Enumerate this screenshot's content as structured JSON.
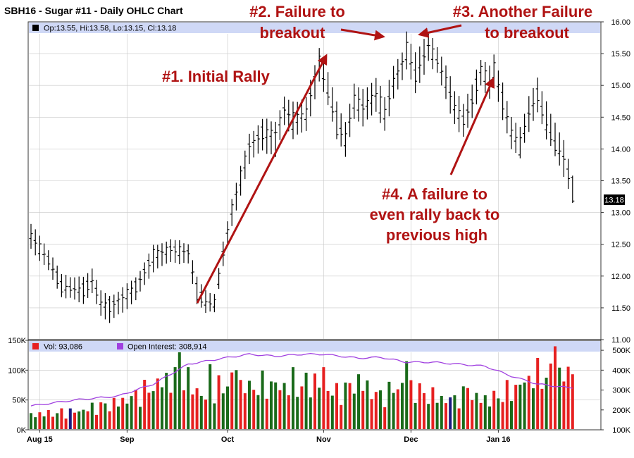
{
  "chart_data": {
    "type": "ohlc",
    "title": "SBH16 - Sugar #11 - Daily OHLC Chart",
    "ohlc_legend": "Op:13.55, Hi:13.58, Lo:13.15, Cl:13.18",
    "volume_legend": "Vol: 93,086",
    "open_interest_legend": "Open Interest: 308,914",
    "last_price_label": "13.18",
    "price_axis": {
      "ylim": [
        11.0,
        16.0
      ],
      "ticks": [
        "11.00",
        "11.50",
        "12.00",
        "12.50",
        "13.00",
        "13.50",
        "14.00",
        "14.50",
        "15.00",
        "15.50",
        "16.00"
      ]
    },
    "volume_axis": {
      "ylim": [
        0,
        150000
      ],
      "ticks": [
        "0K",
        "50K",
        "100K",
        "150K"
      ]
    },
    "oi_axis": {
      "ylim": [
        100000,
        550000
      ],
      "ticks": [
        "100K",
        "200K",
        "300K",
        "400K",
        "500K"
      ]
    },
    "x_labels": [
      {
        "label": "Aug 15",
        "index": 2
      },
      {
        "label": "Sep",
        "index": 22
      },
      {
        "label": "Oct",
        "index": 45
      },
      {
        "label": "Nov",
        "index": 67
      },
      {
        "label": "Dec",
        "index": 87
      },
      {
        "label": "Jan 16",
        "index": 107
      }
    ],
    "ohlc_anchors": [
      [
        0,
        12.55,
        12.8,
        12.45,
        12.7
      ],
      [
        4,
        12.3,
        12.4,
        12.1,
        12.2
      ],
      [
        7,
        11.85,
        12.0,
        11.7,
        11.8
      ],
      [
        12,
        11.8,
        11.95,
        11.6,
        11.75
      ],
      [
        14,
        11.95,
        12.1,
        11.75,
        11.9
      ],
      [
        16,
        11.6,
        11.75,
        11.4,
        11.55
      ],
      [
        18,
        11.55,
        11.65,
        11.3,
        11.5
      ],
      [
        21,
        11.65,
        11.8,
        11.45,
        11.7
      ],
      [
        24,
        11.85,
        11.95,
        11.65,
        11.8
      ],
      [
        28,
        12.3,
        12.45,
        12.1,
        12.35
      ],
      [
        32,
        12.4,
        12.55,
        12.25,
        12.45
      ],
      [
        36,
        12.4,
        12.5,
        12.2,
        12.35
      ],
      [
        38,
        11.8,
        11.95,
        11.6,
        11.7
      ],
      [
        40,
        11.6,
        11.75,
        11.45,
        11.55
      ],
      [
        42,
        11.55,
        11.7,
        11.45,
        11.6
      ],
      [
        44,
        12.3,
        12.5,
        12.2,
        12.4
      ],
      [
        46,
        13.0,
        13.2,
        12.8,
        13.1
      ],
      [
        48,
        13.5,
        13.7,
        13.3,
        13.6
      ],
      [
        50,
        14.0,
        14.2,
        13.8,
        14.1
      ],
      [
        53,
        14.3,
        14.45,
        14.0,
        14.2
      ],
      [
        56,
        14.2,
        14.4,
        13.9,
        14.3
      ],
      [
        58,
        14.6,
        14.8,
        14.4,
        14.65
      ],
      [
        60,
        14.4,
        14.7,
        14.2,
        14.5
      ],
      [
        63,
        14.5,
        14.8,
        14.3,
        14.6
      ],
      [
        65,
        15.1,
        15.3,
        14.8,
        15.2
      ],
      [
        66,
        15.3,
        15.55,
        15.1,
        15.4
      ],
      [
        68,
        14.9,
        15.2,
        14.7,
        14.8
      ],
      [
        70,
        14.5,
        14.7,
        14.2,
        14.3
      ],
      [
        72,
        14.1,
        14.4,
        13.9,
        14.2
      ],
      [
        74,
        14.7,
        15.0,
        14.5,
        14.8
      ],
      [
        76,
        14.6,
        14.9,
        14.4,
        14.7
      ],
      [
        79,
        14.8,
        15.1,
        14.6,
        14.9
      ],
      [
        81,
        14.5,
        14.8,
        14.3,
        14.6
      ],
      [
        83,
        15.0,
        15.3,
        14.8,
        15.1
      ],
      [
        85,
        15.3,
        15.5,
        15.1,
        15.4
      ],
      [
        86,
        15.5,
        15.8,
        15.3,
        15.6
      ],
      [
        88,
        15.2,
        15.5,
        14.9,
        15.1
      ],
      [
        90,
        15.4,
        15.7,
        15.2,
        15.5
      ],
      [
        91,
        15.6,
        15.8,
        15.4,
        15.65
      ],
      [
        93,
        15.4,
        15.6,
        15.2,
        15.35
      ],
      [
        95,
        15.0,
        15.3,
        14.8,
        15.1
      ],
      [
        97,
        14.6,
        14.9,
        14.4,
        14.7
      ],
      [
        99,
        14.5,
        14.7,
        14.2,
        14.4
      ],
      [
        101,
        14.8,
        15.0,
        14.5,
        14.7
      ],
      [
        103,
        15.2,
        15.4,
        15.0,
        15.3
      ],
      [
        105,
        15.0,
        15.3,
        14.8,
        15.1
      ],
      [
        106,
        15.2,
        15.45,
        15.0,
        15.3
      ],
      [
        108,
        14.8,
        15.0,
        14.5,
        14.7
      ],
      [
        110,
        14.2,
        14.5,
        14.0,
        14.3
      ],
      [
        112,
        14.0,
        14.3,
        13.9,
        14.1
      ],
      [
        114,
        14.5,
        14.8,
        14.3,
        14.6
      ],
      [
        116,
        14.9,
        15.1,
        14.6,
        14.8
      ],
      [
        118,
        14.4,
        14.7,
        14.2,
        14.3
      ],
      [
        120,
        14.1,
        14.4,
        13.9,
        14.0
      ],
      [
        122,
        13.8,
        14.1,
        13.6,
        13.9
      ],
      [
        124,
        13.55,
        13.58,
        13.15,
        13.18
      ]
    ],
    "volume_anchors": [
      [
        0,
        25000
      ],
      [
        10,
        30000
      ],
      [
        20,
        45000
      ],
      [
        25,
        60000
      ],
      [
        30,
        80000
      ],
      [
        35,
        90000
      ],
      [
        40,
        50000
      ],
      [
        45,
        80000
      ],
      [
        50,
        70000
      ],
      [
        55,
        75000
      ],
      [
        60,
        70000
      ],
      [
        65,
        80000
      ],
      [
        70,
        60000
      ],
      [
        75,
        80000
      ],
      [
        80,
        55000
      ],
      [
        85,
        75000
      ],
      [
        90,
        60000
      ],
      [
        95,
        50000
      ],
      [
        100,
        55000
      ],
      [
        105,
        50000
      ],
      [
        110,
        65000
      ],
      [
        115,
        90000
      ],
      [
        120,
        90000
      ],
      [
        124,
        93086
      ]
    ],
    "volume_spikes": [
      [
        34,
        130000
      ],
      [
        36,
        105000
      ],
      [
        41,
        110000
      ],
      [
        47,
        100000
      ],
      [
        60,
        105000
      ],
      [
        67,
        105000
      ],
      [
        86,
        115000
      ],
      [
        100,
        70000
      ],
      [
        120,
        140000
      ]
    ],
    "oi_anchors": [
      [
        0,
        220000
      ],
      [
        10,
        250000
      ],
      [
        20,
        270000
      ],
      [
        28,
        330000
      ],
      [
        36,
        430000
      ],
      [
        44,
        460000
      ],
      [
        50,
        480000
      ],
      [
        56,
        470000
      ],
      [
        62,
        480000
      ],
      [
        67,
        480000
      ],
      [
        75,
        460000
      ],
      [
        80,
        465000
      ],
      [
        86,
        440000
      ],
      [
        92,
        440000
      ],
      [
        98,
        430000
      ],
      [
        104,
        420000
      ],
      [
        110,
        370000
      ],
      [
        116,
        330000
      ],
      [
        124,
        309000
      ]
    ],
    "oi_current": 308914,
    "volume_current": 93086,
    "annotations": [
      {
        "lines": [
          "#1. Initial Rally"
        ],
        "color": "#b01313"
      },
      {
        "lines": [
          "#2. Failure to",
          "breakout"
        ],
        "color": "#b01313"
      },
      {
        "lines": [
          "#3. Another Failure",
          "to breakout"
        ],
        "color": "#b01313"
      },
      {
        "lines": [
          "#4. A failure to",
          "even rally back to",
          "previous high"
        ],
        "color": "#b01313"
      }
    ],
    "colors": {
      "up_bar": "#1a6a1a",
      "down_bar": "#e62020",
      "highlight_bar": "#1a1a80",
      "open_interest": "#a040e0",
      "legend_band": "#cfd8f6",
      "annotation": "#b01313",
      "grid": "#c8c8c8"
    },
    "grid": true,
    "legend_placement": "top-left"
  }
}
